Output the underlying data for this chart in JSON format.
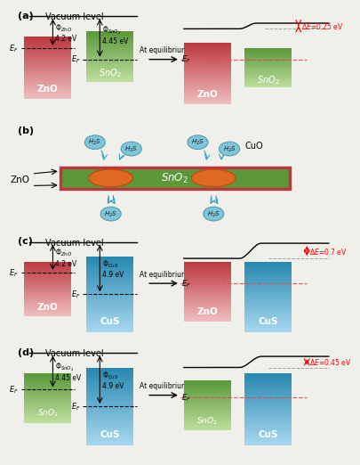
{
  "bg": "#f0f0eb",
  "zno_top": "#bb3840",
  "zno_bot": "#f0c0c0",
  "sno2_top": "#5a9838",
  "sno2_bot": "#c0e0a0",
  "cus_top": "#2888b0",
  "cus_bot": "#a8d8f0",
  "panels": {
    "a": {
      "label": "(a)",
      "delta_e": "ΔE=0.25 eV",
      "phi1": "Φ_ZnO\n4.2 eV",
      "phi2": "Φ_SnO2\n4.45 eV"
    },
    "b": {
      "label": "(b)"
    },
    "c": {
      "label": "(c)",
      "delta_e": "ΔE=0.7 eV",
      "phi1": "Φ_ZnO\n4.2 eV",
      "phi2": "Φ_CuS\n4.9 eV"
    },
    "d": {
      "label": "(d)",
      "delta_e": "ΔE=0.45 eV",
      "phi1": "Φ_SnO2\n4.45 eV",
      "phi2": "Φ_CuS\n4.9 eV"
    }
  }
}
